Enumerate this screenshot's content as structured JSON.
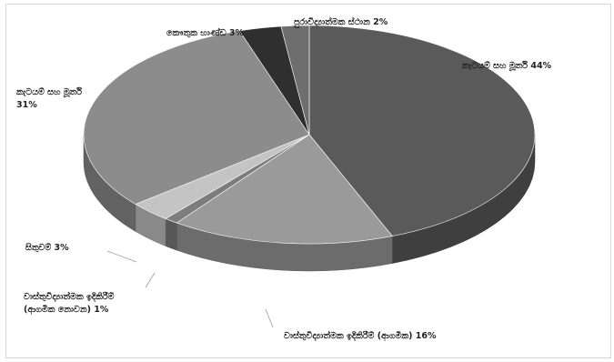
{
  "chart_data": {
    "type": "pie",
    "title": "",
    "three_d": true,
    "slices": [
      {
        "label": "කැටයම් සහ මූර්ති 44%",
        "value": 44,
        "color": "#5a5a5a"
      },
      {
        "label": "වාස්තුවිද්‍යාත්මක ඉදිකිරීම් (ආගමික) 16%",
        "value": 16,
        "color": "#9a9a9a"
      },
      {
        "label": "වාස්තුවිද්‍යාත්මක ඉදිකිරීම් (ආගමික නොවන) 1%",
        "value": 1,
        "color": "#7d7d7d"
      },
      {
        "label": "සිතුවම් 3%",
        "value": 3,
        "color": "#c4c4c4"
      },
      {
        "label": "කැටයම් සහ මූර්ති 31%",
        "value": 31,
        "color": "#8c8c8c"
      },
      {
        "label": "කෞතුක භාණ්ඩ 3%",
        "value": 3,
        "color": "#2f2f2f"
      },
      {
        "label": "පුරාවිද්‍යාත්මක ස්ථාන 2%",
        "value": 2,
        "color": "#6e6e6e"
      }
    ],
    "legend": "none"
  }
}
